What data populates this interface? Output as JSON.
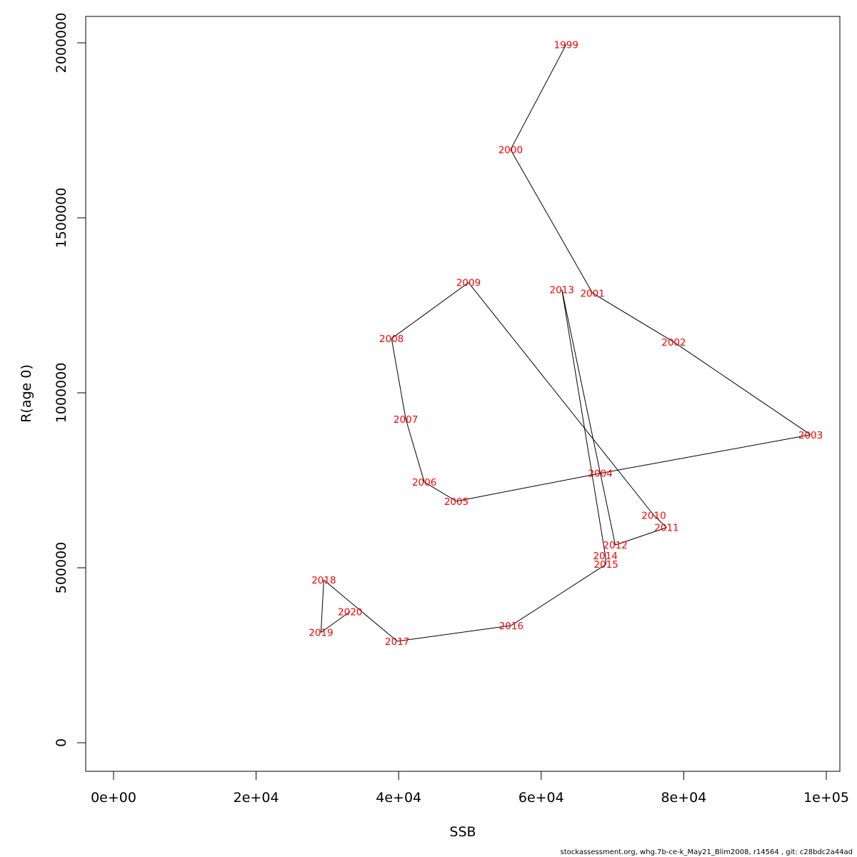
{
  "footer": "stockassessment.org, whg.7b-ce-k_May21_Blim2008, r14564 , git: c28bdc2a44ad",
  "colors": {
    "label": "#ff0000",
    "line": "#000000",
    "axis": "#000000"
  },
  "chart_data": {
    "type": "line",
    "title": "",
    "xlabel": "SSB",
    "ylabel": "R(age 0)",
    "xlim": [
      0,
      100000
    ],
    "ylim": [
      0,
      2000000
    ],
    "grid": false,
    "legend": "none",
    "x_ticks": [
      0,
      20000,
      40000,
      60000,
      80000,
      100000
    ],
    "x_tick_labels": [
      "0e+00",
      "2e+04",
      "4e+04",
      "6e+04",
      "8e+04",
      "1e+05"
    ],
    "y_ticks": [
      0,
      500000,
      1000000,
      1500000,
      2000000
    ],
    "y_tick_labels": [
      "0",
      "500000",
      "1000000",
      "1500000",
      "2000000"
    ],
    "points": [
      {
        "label": "1999",
        "x": 63500,
        "y": 1995000
      },
      {
        "label": "2000",
        "x": 55700,
        "y": 1695000
      },
      {
        "label": "2001",
        "x": 67200,
        "y": 1285000
      },
      {
        "label": "2002",
        "x": 78600,
        "y": 1145000
      },
      {
        "label": "2003",
        "x": 97800,
        "y": 880000
      },
      {
        "label": "2004",
        "x": 68300,
        "y": 770000
      },
      {
        "label": "2005",
        "x": 48100,
        "y": 690000
      },
      {
        "label": "2006",
        "x": 43600,
        "y": 745000
      },
      {
        "label": "2007",
        "x": 41000,
        "y": 925000
      },
      {
        "label": "2008",
        "x": 39000,
        "y": 1155000
      },
      {
        "label": "2009",
        "x": 49800,
        "y": 1315000
      },
      {
        "label": "2010",
        "x": 75800,
        "y": 650000
      },
      {
        "label": "2011",
        "x": 77600,
        "y": 615000
      },
      {
        "label": "2012",
        "x": 70400,
        "y": 565000
      },
      {
        "label": "2013",
        "x": 62900,
        "y": 1295000
      },
      {
        "label": "2014",
        "x": 69000,
        "y": 535000
      },
      {
        "label": "2015",
        "x": 69100,
        "y": 510000
      },
      {
        "label": "2016",
        "x": 55800,
        "y": 335000
      },
      {
        "label": "2017",
        "x": 39800,
        "y": 290000
      },
      {
        "label": "2018",
        "x": 29500,
        "y": 465000
      },
      {
        "label": "2019",
        "x": 29100,
        "y": 315000
      },
      {
        "label": "2020",
        "x": 33200,
        "y": 375000
      }
    ]
  }
}
